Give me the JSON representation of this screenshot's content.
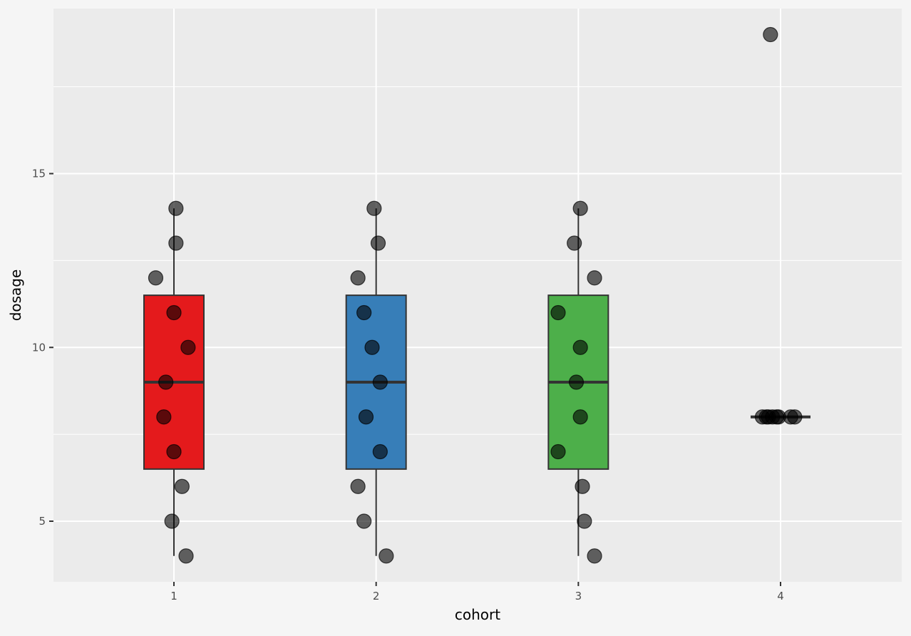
{
  "chart_data": {
    "type": "boxplot",
    "xlabel": "cohort",
    "ylabel": "dosage",
    "categories": [
      "1",
      "2",
      "3",
      "4"
    ],
    "ylim": [
      3.3,
      19.8
    ],
    "y_ticks": [
      5,
      10,
      15
    ],
    "grid": true,
    "legend": "none",
    "colors": {
      "panel_background": "#ebebeb",
      "page_background": "#f5f5f5",
      "grid": "#ffffff",
      "box_outline": "#333333",
      "point_fill": "#000000"
    },
    "boxes": [
      {
        "category": "1",
        "min": 4,
        "q1": 6.5,
        "median": 9,
        "q3": 11.5,
        "max": 14,
        "fill": "#e41a1c"
      },
      {
        "category": "2",
        "min": 4,
        "q1": 6.5,
        "median": 9,
        "q3": 11.5,
        "max": 14,
        "fill": "#377eb8"
      },
      {
        "category": "3",
        "min": 4,
        "q1": 6.5,
        "median": 9,
        "q3": 11.5,
        "max": 14,
        "fill": "#4daf4a"
      },
      {
        "category": "4",
        "min": 8,
        "q1": 8,
        "median": 8,
        "q3": 8,
        "max": 8,
        "fill": "#984ea3"
      }
    ],
    "points": [
      {
        "category": "1",
        "jitter": 0.01,
        "y": 14
      },
      {
        "category": "1",
        "jitter": 0.01,
        "y": 13
      },
      {
        "category": "1",
        "jitter": -0.09,
        "y": 12
      },
      {
        "category": "1",
        "jitter": 0.0,
        "y": 11
      },
      {
        "category": "1",
        "jitter": 0.07,
        "y": 10
      },
      {
        "category": "1",
        "jitter": -0.04,
        "y": 9
      },
      {
        "category": "1",
        "jitter": -0.05,
        "y": 8
      },
      {
        "category": "1",
        "jitter": 0.0,
        "y": 7
      },
      {
        "category": "1",
        "jitter": 0.04,
        "y": 6
      },
      {
        "category": "1",
        "jitter": -0.01,
        "y": 5
      },
      {
        "category": "1",
        "jitter": 0.06,
        "y": 4
      },
      {
        "category": "2",
        "jitter": -0.01,
        "y": 14
      },
      {
        "category": "2",
        "jitter": 0.01,
        "y": 13
      },
      {
        "category": "2",
        "jitter": -0.09,
        "y": 12
      },
      {
        "category": "2",
        "jitter": -0.06,
        "y": 11
      },
      {
        "category": "2",
        "jitter": -0.02,
        "y": 10
      },
      {
        "category": "2",
        "jitter": 0.02,
        "y": 9
      },
      {
        "category": "2",
        "jitter": -0.05,
        "y": 8
      },
      {
        "category": "2",
        "jitter": 0.02,
        "y": 7
      },
      {
        "category": "2",
        "jitter": -0.09,
        "y": 6
      },
      {
        "category": "2",
        "jitter": -0.06,
        "y": 5
      },
      {
        "category": "2",
        "jitter": 0.05,
        "y": 4
      },
      {
        "category": "3",
        "jitter": 0.01,
        "y": 14
      },
      {
        "category": "3",
        "jitter": -0.02,
        "y": 13
      },
      {
        "category": "3",
        "jitter": 0.08,
        "y": 12
      },
      {
        "category": "3",
        "jitter": -0.1,
        "y": 11
      },
      {
        "category": "3",
        "jitter": 0.01,
        "y": 10
      },
      {
        "category": "3",
        "jitter": -0.01,
        "y": 9
      },
      {
        "category": "3",
        "jitter": 0.01,
        "y": 8
      },
      {
        "category": "3",
        "jitter": -0.1,
        "y": 7
      },
      {
        "category": "3",
        "jitter": 0.02,
        "y": 6
      },
      {
        "category": "3",
        "jitter": 0.03,
        "y": 5
      },
      {
        "category": "3",
        "jitter": 0.08,
        "y": 4
      },
      {
        "category": "4",
        "jitter": -0.05,
        "y": 19
      },
      {
        "category": "4",
        "jitter": -0.09,
        "y": 8
      },
      {
        "category": "4",
        "jitter": -0.07,
        "y": 8
      },
      {
        "category": "4",
        "jitter": -0.06,
        "y": 8
      },
      {
        "category": "4",
        "jitter": -0.04,
        "y": 8
      },
      {
        "category": "4",
        "jitter": -0.02,
        "y": 8
      },
      {
        "category": "4",
        "jitter": -0.01,
        "y": 8
      },
      {
        "category": "4",
        "jitter": 0.05,
        "y": 8
      },
      {
        "category": "4",
        "jitter": 0.07,
        "y": 8
      }
    ]
  }
}
